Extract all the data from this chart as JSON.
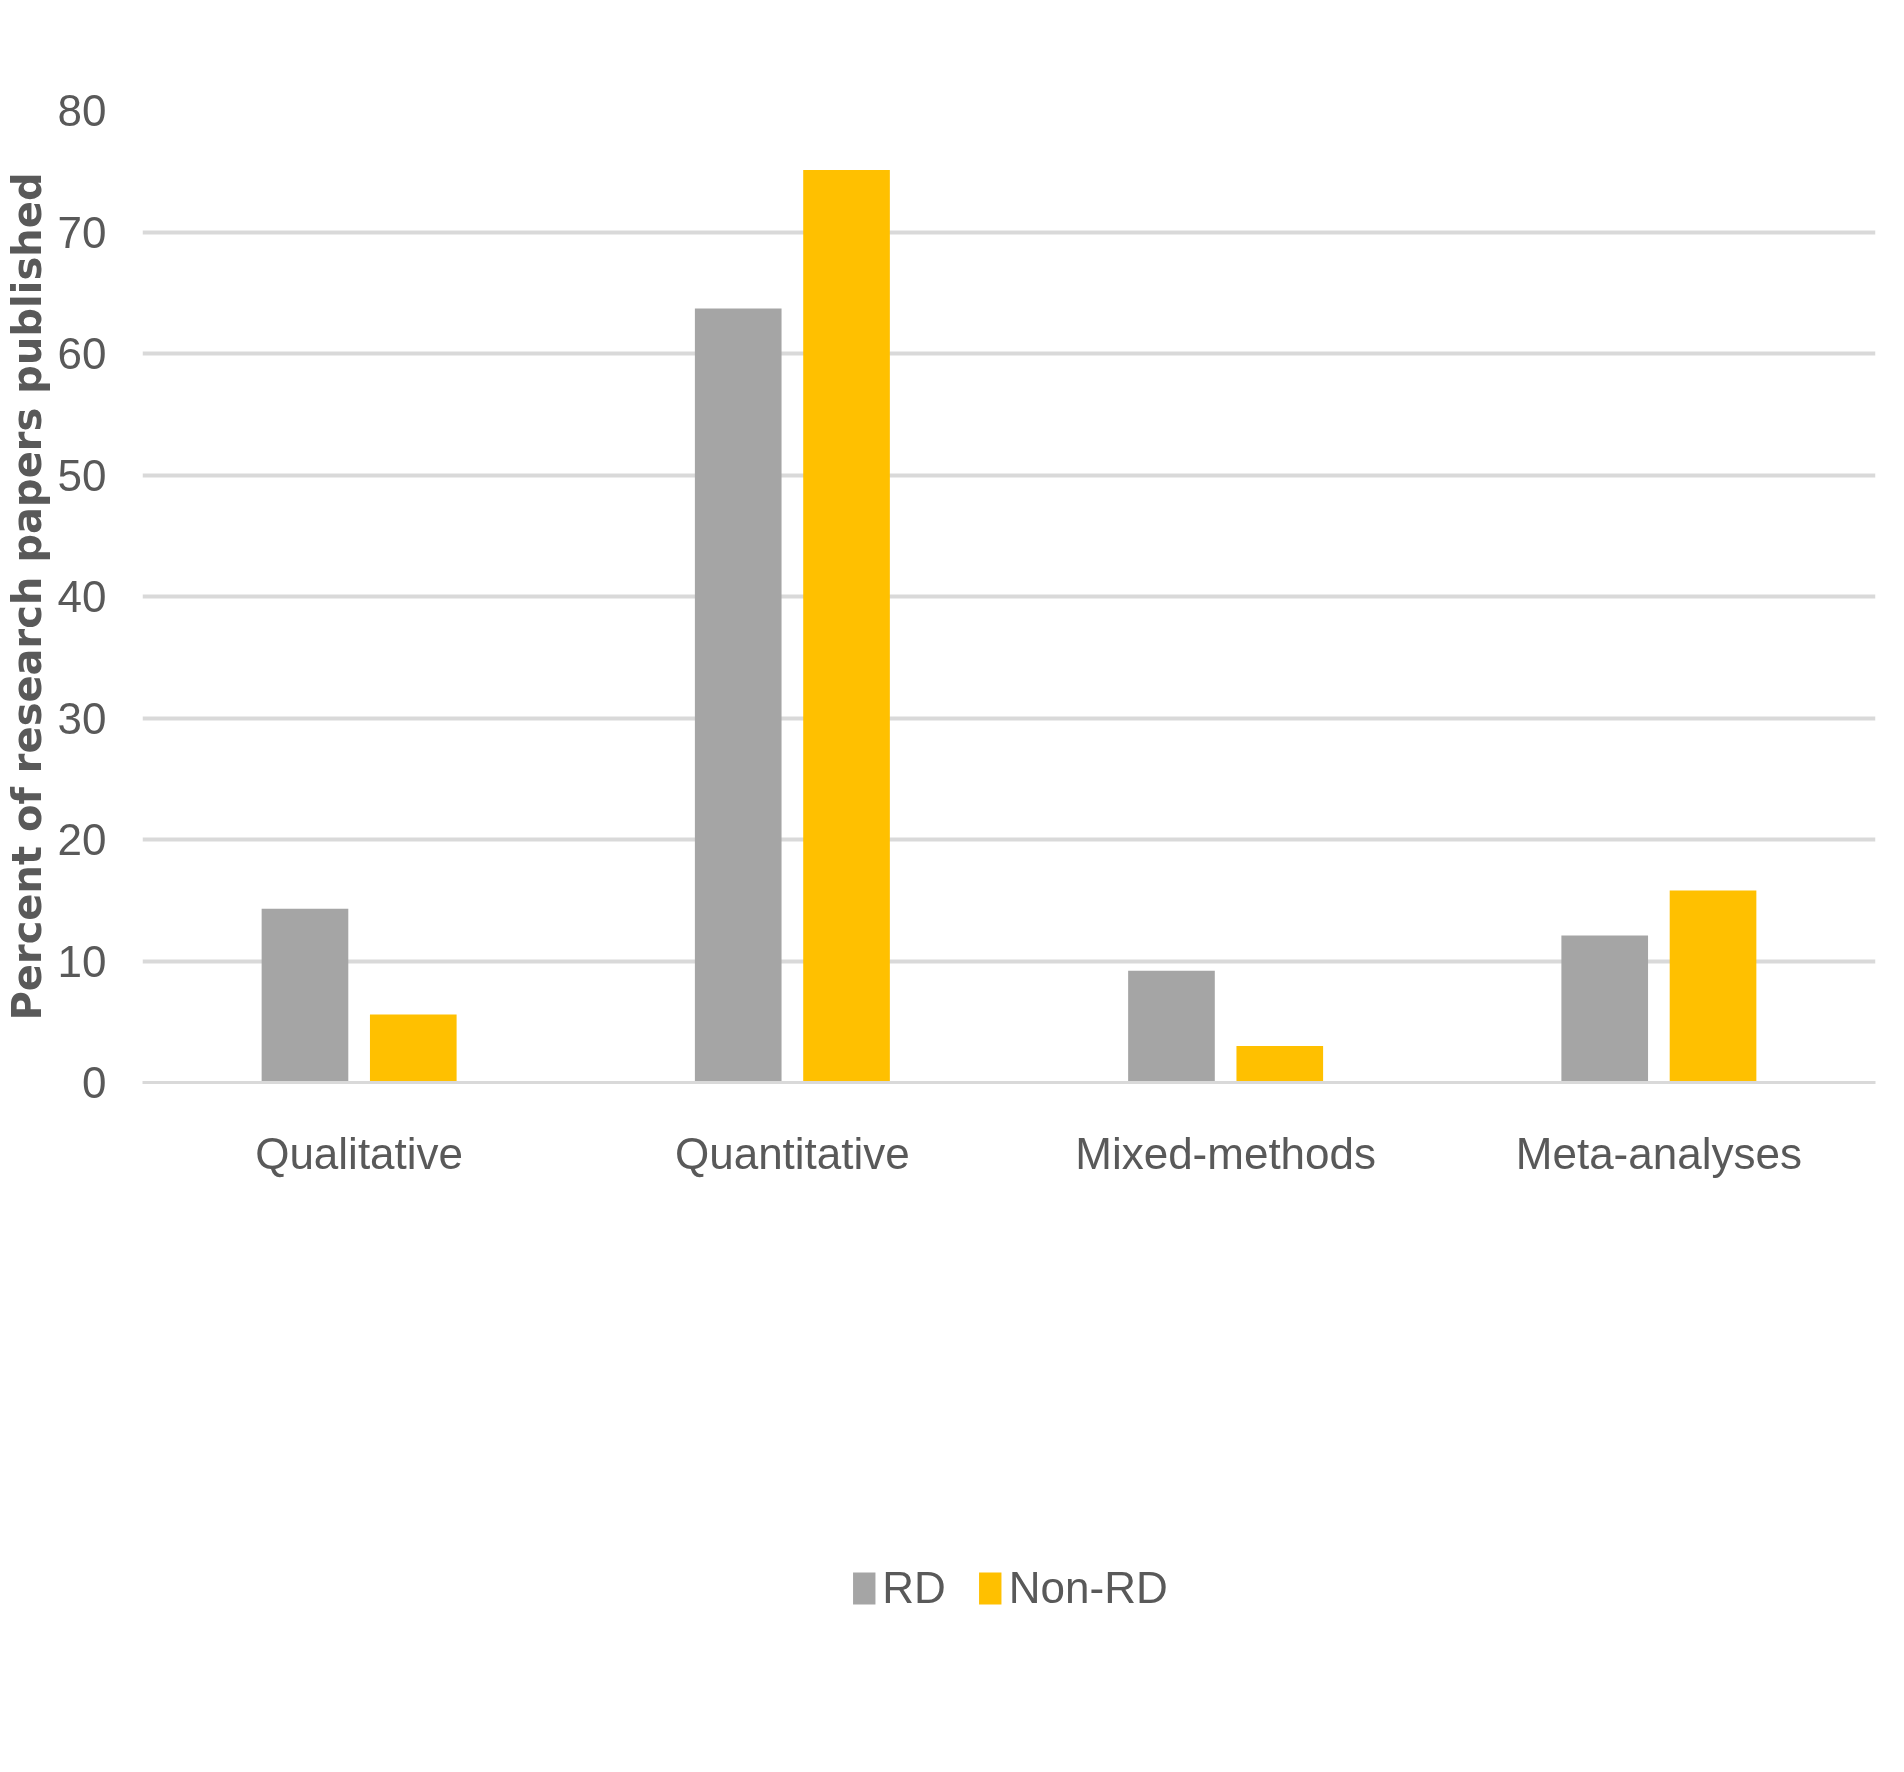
{
  "chart_data": {
    "type": "bar",
    "ylabel": "Percent of research papers published",
    "categories": [
      "Qualitative",
      "Quantitative",
      "Mixed-methods",
      "Meta-analyses"
    ],
    "series": [
      {
        "name": "RD",
        "color": "#a5a5a5",
        "values": [
          14.3,
          63.7,
          9.2,
          12.1
        ]
      },
      {
        "name": "Non-RD",
        "color": "#ffc000",
        "values": [
          5.6,
          75.1,
          3.0,
          15.8
        ]
      }
    ],
    "ylim": [
      0,
      80
    ],
    "yticks": [
      0,
      10,
      20,
      30,
      40,
      50,
      60,
      70,
      80
    ],
    "grid": "y",
    "legend": "bottom"
  }
}
